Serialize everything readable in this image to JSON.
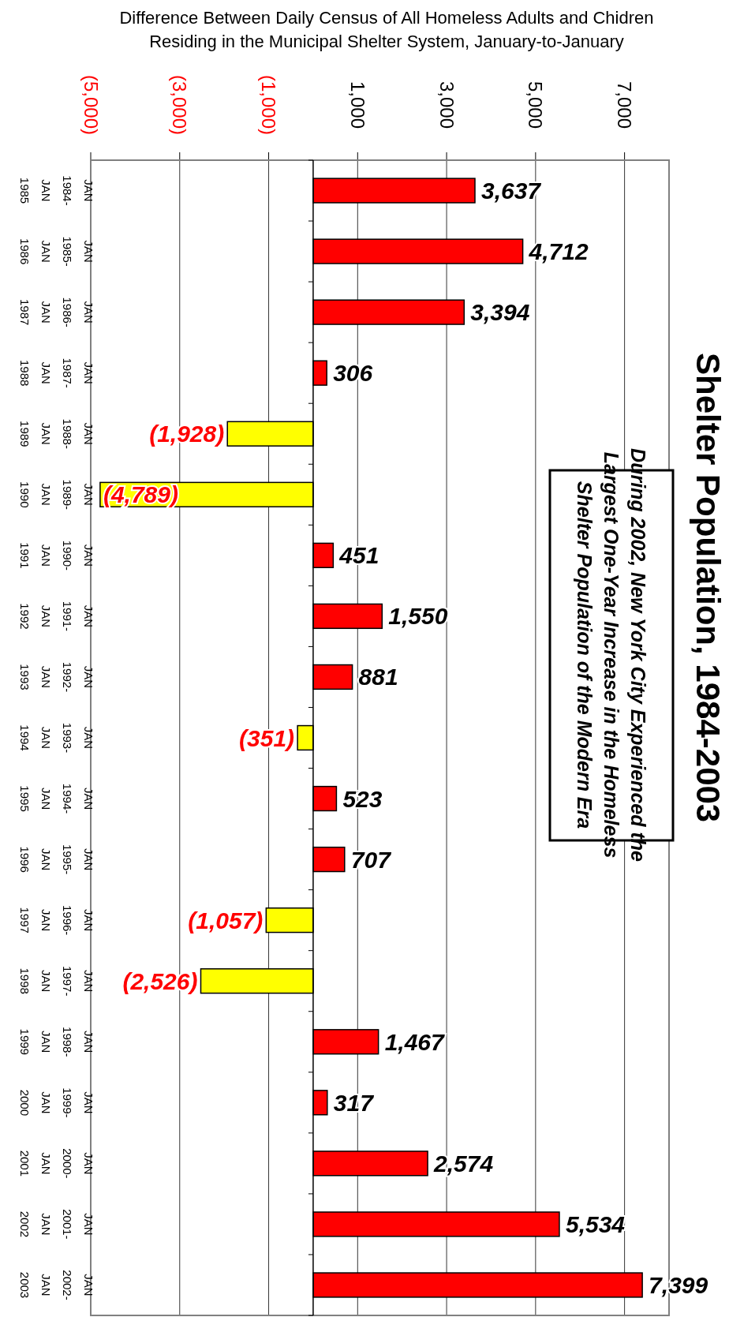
{
  "chart_data": {
    "type": "bar",
    "orientation": "horizontal",
    "title": "Shelter Population, 1984-2003",
    "xlabel": "Difference Between Daily Census of All Homeless Adults and Chidren Residing in the Municipal Shelter System, January-to-January",
    "categories": [
      "JAN 1984- JAN 1985",
      "JAN 1985- JAN 1986",
      "JAN 1986- JAN 1987",
      "JAN 1987- JAN 1988",
      "JAN 1988- JAN 1989",
      "JAN 1989- JAN 1990",
      "JAN 1990- JAN 1991",
      "JAN 1991- JAN 1992",
      "JAN 1992- JAN 1993",
      "JAN 1993- JAN 1994",
      "JAN 1994- JAN 1995",
      "JAN 1995- JAN 1996",
      "JAN 1996- JAN 1997",
      "JAN 1997- JAN 1998",
      "JAN 1998- JAN 1999",
      "JAN 1999- JAN 2000",
      "JAN 2000- JAN 2001",
      "JAN 2001- JAN 2002",
      "JAN 2002- JAN 2003"
    ],
    "values": [
      3637,
      4712,
      3394,
      306,
      -1928,
      -4789,
      451,
      1550,
      881,
      -351,
      523,
      707,
      -1057,
      -2526,
      1467,
      317,
      2574,
      5534,
      7399
    ],
    "colors": [
      "#ff0000",
      "#ff0000",
      "#ff0000",
      "#ff0000",
      "#ffff00",
      "#ffff00",
      "#ff0000",
      "#ff0000",
      "#ff0000",
      "#ffff00",
      "#ff0000",
      "#ff0000",
      "#ffff00",
      "#ffff00",
      "#ff0000",
      "#ff0000",
      "#ff0000",
      "#ff0000",
      "#ff0000"
    ],
    "value_labels": [
      "3,637",
      "4,712",
      "3,394",
      "306",
      "(1,928)",
      "(4,789)",
      "451",
      "1,550",
      "881",
      "(351)",
      "523",
      "707",
      "(1,057)",
      "(2,526)",
      "1,467",
      "317",
      "2,574",
      "5,534",
      "7,399"
    ],
    "xlim": [
      -5000,
      8000
    ],
    "xticks": [
      {
        "value": -5000,
        "label": "(5,000)"
      },
      {
        "value": -3000,
        "label": "(3,000)"
      },
      {
        "value": -1000,
        "label": "(1,000)"
      },
      {
        "value": 1000,
        "label": "1,000"
      },
      {
        "value": 3000,
        "label": "3,000"
      },
      {
        "value": 5000,
        "label": "5,000"
      },
      {
        "value": 7000,
        "label": "7,000"
      }
    ],
    "grid": true,
    "annotations": [
      "During 2002, New York City Experienced the Largest One-Year Increase in the Homeless Shelter Population of the Modern Era"
    ]
  }
}
